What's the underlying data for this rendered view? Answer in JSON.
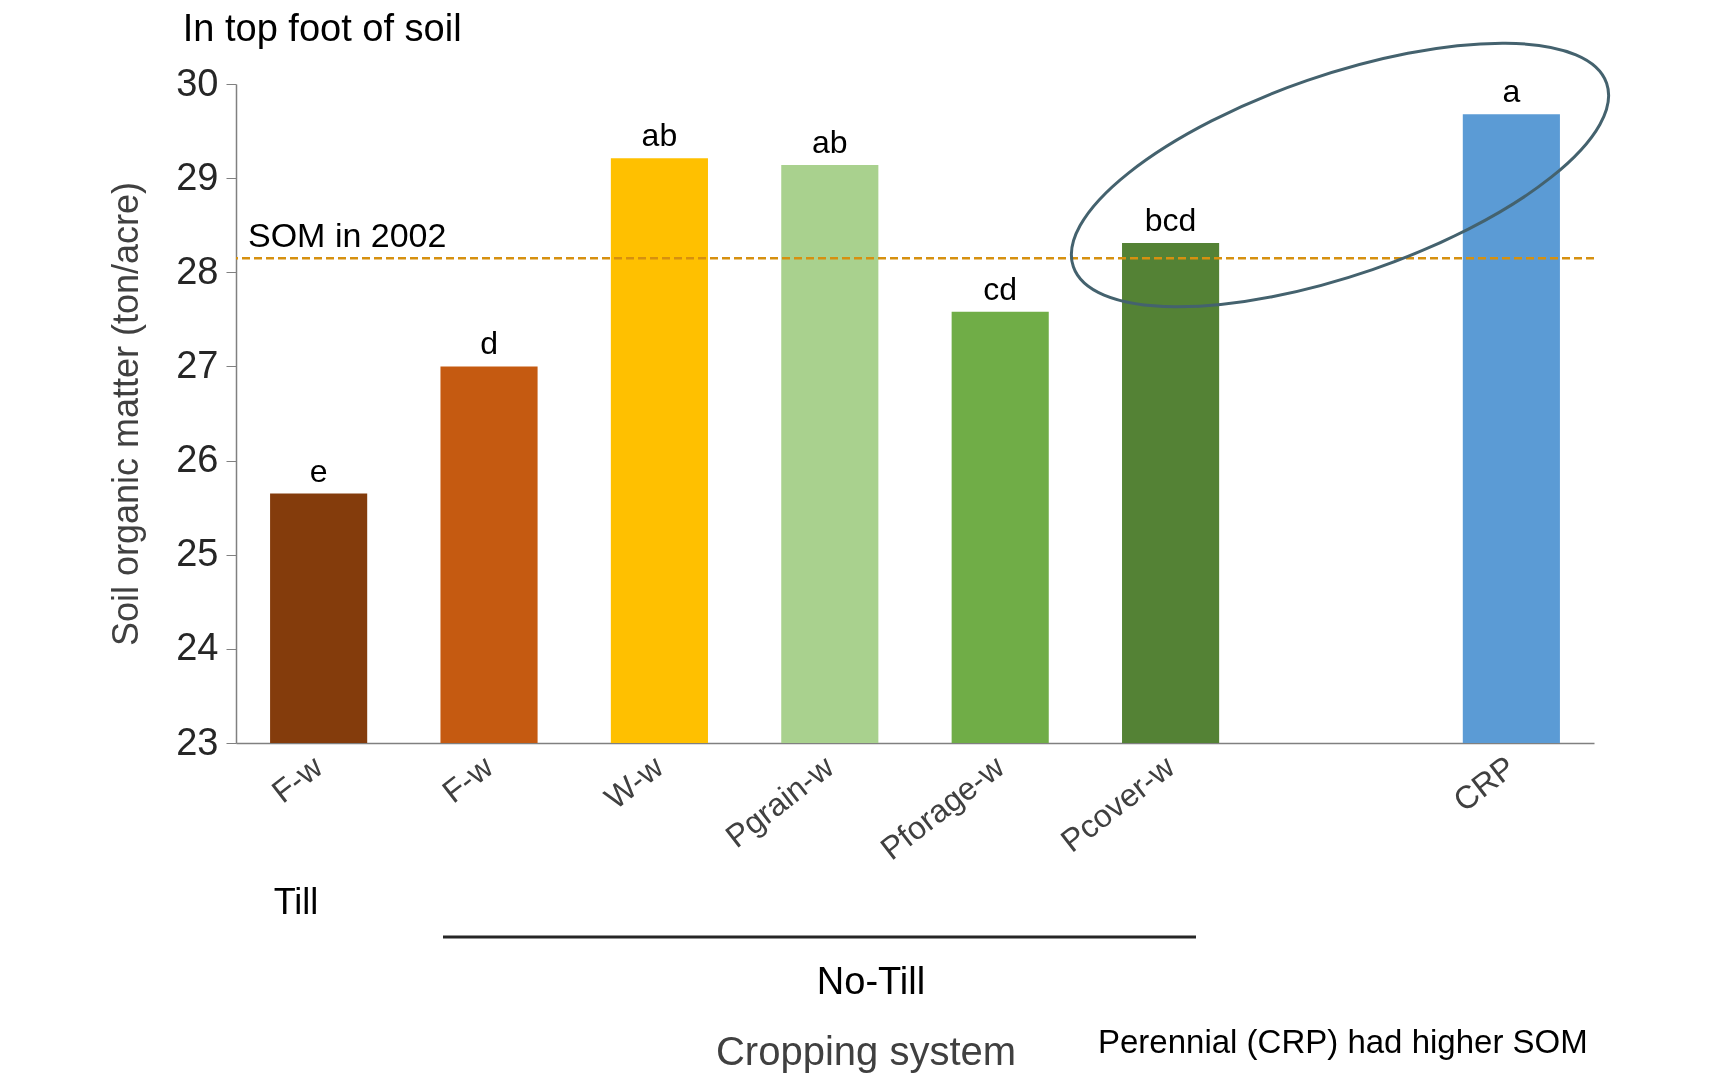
{
  "chart_data": {
    "type": "bar",
    "title": "In top foot of soil",
    "xlabel": "Cropping system",
    "ylabel": "Soil organic matter (ton/acre)",
    "categories": [
      "F-w",
      "F-w",
      "W-w",
      "Pgrain-w",
      "Pforage-w",
      "Pcover-w",
      null,
      "CRP"
    ],
    "values": [
      25.65,
      27.0,
      29.21,
      29.14,
      27.58,
      28.31,
      null,
      29.68
    ],
    "colors": [
      "#843c0c",
      "#c55a11",
      "#ffc000",
      "#a9d18e",
      "#70ad47",
      "#548235",
      "#ffffff",
      "#5b9bd5"
    ],
    "value_labels": [
      "e",
      "d",
      "ab",
      "ab",
      "cd",
      "bcd",
      null,
      "a"
    ],
    "ylim": [
      23,
      30
    ],
    "yticks": [
      23,
      24,
      25,
      26,
      27,
      28,
      29,
      30
    ],
    "grid": false,
    "ref_lines": [
      {
        "axis": "y",
        "value": 28.15,
        "label": "SOM in 2002",
        "color": "#d6900f",
        "line_style": "dashed"
      }
    ],
    "annotations": [
      "Till",
      "No-Till",
      "Perennial (CRP) had higher SOM"
    ]
  }
}
